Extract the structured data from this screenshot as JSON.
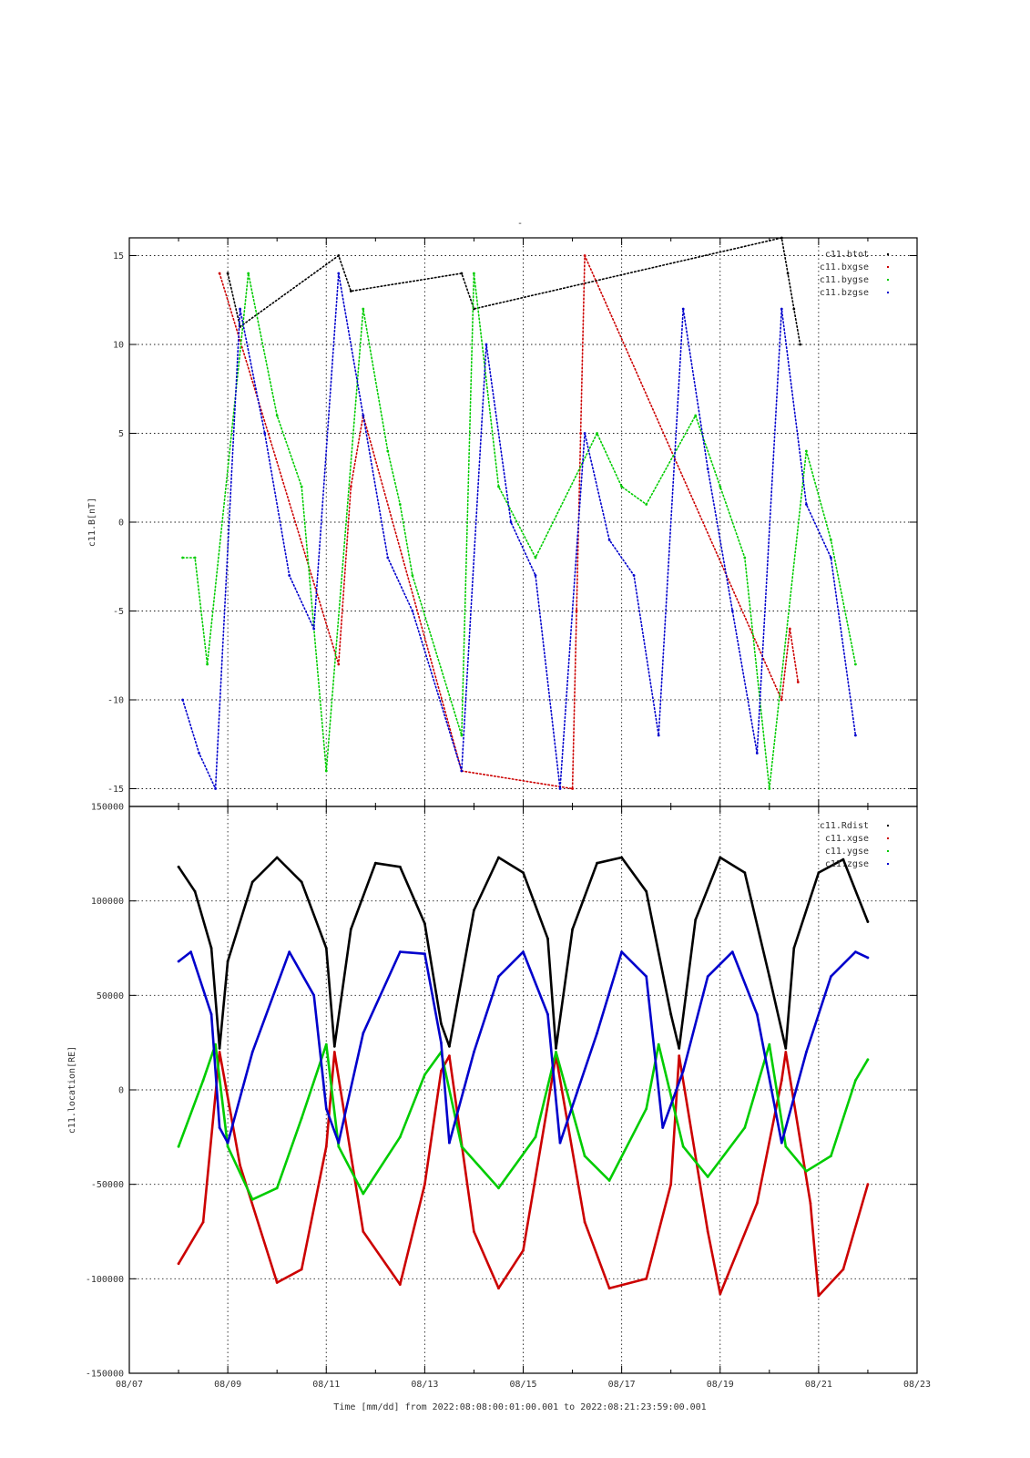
{
  "figure": {
    "top_title": "-",
    "xlabel": "Time [mm/dd]  from 2022:08:08:00:01:00.001  to  2022:08:21:23:59:00.001"
  },
  "chart_data": [
    {
      "type": "scatter",
      "ylabel": "c11.B[nT]",
      "xlim": [
        "08/07",
        "08/23"
      ],
      "ylim": [
        -16,
        16
      ],
      "y_ticks": [
        "15",
        "10",
        "5",
        "0",
        "-5",
        "-10",
        "-15"
      ],
      "y_tick_values": [
        15,
        10,
        5,
        0,
        -5,
        -10,
        -15
      ],
      "grid": true,
      "legend_position": "top-right",
      "series": [
        {
          "name": "c11.btot",
          "color": "#000000",
          "x": [
            "08/09 00:00",
            "08/09 06:00",
            "08/11 06:00",
            "08/11 12:00",
            "08/13 18:00",
            "08/14 00:00",
            "08/20 06:00",
            "08/20 09:00",
            "08/20 12:00",
            "08/20 15:00"
          ],
          "y": [
            14,
            11,
            15,
            13,
            14,
            12,
            16,
            14,
            12,
            10
          ]
        },
        {
          "name": "c11.bxgse",
          "color": "#cc0000",
          "x": [
            "08/08 20:00",
            "08/11 06:00",
            "08/11 12:00",
            "08/11 18:00",
            "08/13 18:00",
            "08/16 00:00",
            "08/16 02:00",
            "08/16 04:00",
            "08/16 06:00",
            "08/20 06:00",
            "08/20 10:00",
            "08/20 14:00"
          ],
          "y": [
            14,
            -8,
            2,
            6,
            -14,
            -15,
            -5,
            5,
            15,
            -10,
            -6,
            -9
          ]
        },
        {
          "name": "c11.bygse",
          "color": "#00cc00",
          "x": [
            "08/08 02:00",
            "08/08 08:00",
            "08/08 14:00",
            "08/09 10:00",
            "08/10 00:00",
            "08/10 12:00",
            "08/11 00:00",
            "08/11 18:00",
            "08/12 06:00",
            "08/12 12:00",
            "08/12 18:00",
            "08/13 18:00",
            "08/14 00:00",
            "08/14 12:00",
            "08/15 06:00",
            "08/16 12:00",
            "08/17 00:00",
            "08/17 12:00",
            "08/18 12:00",
            "08/19 00:00",
            "08/19 12:00",
            "08/20 00:00",
            "08/20 18:00",
            "08/21 06:00",
            "08/21 18:00"
          ],
          "y": [
            -2,
            -2,
            -8,
            14,
            6,
            2,
            -14,
            12,
            4,
            1,
            -3,
            -12,
            14,
            2,
            -2,
            5,
            2,
            1,
            6,
            2,
            -2,
            -15,
            4,
            -1,
            -8
          ]
        },
        {
          "name": "c11.bzgse",
          "color": "#0000cc",
          "x": [
            "08/08 02:00",
            "08/08 10:00",
            "08/08 18:00",
            "08/09 06:00",
            "08/09 18:00",
            "08/10 06:00",
            "08/10 18:00",
            "08/11 06:00",
            "08/11 18:00",
            "08/12 06:00",
            "08/12 18:00",
            "08/13 18:00",
            "08/14 06:00",
            "08/14 18:00",
            "08/15 06:00",
            "08/15 18:00",
            "08/16 06:00",
            "08/16 18:00",
            "08/17 06:00",
            "08/17 18:00",
            "08/18 06:00",
            "08/18 18:00",
            "08/19 06:00",
            "08/19 18:00",
            "08/20 06:00",
            "08/20 18:00",
            "08/21 06:00",
            "08/21 18:00"
          ],
          "y": [
            -10,
            -13,
            -15,
            12,
            5,
            -3,
            -6,
            14,
            6,
            -2,
            -5,
            -14,
            10,
            0,
            -3,
            -15,
            5,
            -1,
            -3,
            -12,
            12,
            3,
            -5,
            -13,
            12,
            1,
            -2,
            -12
          ]
        }
      ]
    },
    {
      "type": "scatter",
      "ylabel": "c11.location[RE]",
      "xlim": [
        "08/07",
        "08/23"
      ],
      "ylim": [
        -150000,
        150000
      ],
      "y_ticks": [
        "150000",
        "100000",
        "50000",
        "0",
        "-50000",
        "-100000",
        "-150000"
      ],
      "y_tick_values": [
        150000,
        100000,
        50000,
        0,
        -50000,
        -100000,
        -150000
      ],
      "x_ticks": [
        "08/07",
        "08/09",
        "08/11",
        "08/13",
        "08/15",
        "08/17",
        "08/19",
        "08/21",
        "08/23"
      ],
      "grid": true,
      "legend_position": "top-right",
      "series": [
        {
          "name": "c11.Rdist",
          "color": "#000000",
          "x": [
            "08/08 00:00",
            "08/08 08:00",
            "08/08 16:00",
            "08/08 20:00",
            "08/09 00:00",
            "08/09 12:00",
            "08/10 00:00",
            "08/10 12:00",
            "08/11 00:00",
            "08/11 04:00",
            "08/11 12:00",
            "08/12 00:00",
            "08/12 12:00",
            "08/13 00:00",
            "08/13 08:00",
            "08/13 12:00",
            "08/14 00:00",
            "08/14 12:00",
            "08/15 00:00",
            "08/15 12:00",
            "08/15 16:00",
            "08/16 00:00",
            "08/16 12:00",
            "08/17 00:00",
            "08/17 12:00",
            "08/18 00:00",
            "08/18 04:00",
            "08/18 12:00",
            "08/19 00:00",
            "08/19 12:00",
            "08/20 00:00",
            "08/20 08:00",
            "08/20 12:00",
            "08/21 00:00",
            "08/21 12:00",
            "08/22 00:00"
          ],
          "y": [
            118000,
            105000,
            75000,
            22000,
            68000,
            110000,
            123000,
            110000,
            75000,
            23000,
            85000,
            120000,
            118000,
            88000,
            35000,
            23000,
            95000,
            123000,
            115000,
            80000,
            22000,
            85000,
            120000,
            123000,
            105000,
            40000,
            22000,
            90000,
            123000,
            115000,
            60000,
            22000,
            75000,
            115000,
            122000,
            89000
          ]
        },
        {
          "name": "c11.xgse",
          "color": "#cc0000",
          "x": [
            "08/08 00:00",
            "08/08 12:00",
            "08/08 20:00",
            "08/09 06:00",
            "08/10 00:00",
            "08/10 12:00",
            "08/11 00:00",
            "08/11 04:00",
            "08/11 18:00",
            "08/12 12:00",
            "08/13 00:00",
            "08/13 08:00",
            "08/13 12:00",
            "08/14 00:00",
            "08/14 12:00",
            "08/15 00:00",
            "08/15 16:00",
            "08/16 06:00",
            "08/16 18:00",
            "08/17 12:00",
            "08/18 00:00",
            "08/18 04:00",
            "08/18 18:00",
            "08/19 00:00",
            "08/19 18:00",
            "08/20 06:00",
            "08/20 08:00",
            "08/20 20:00",
            "08/21 00:00",
            "08/21 12:00",
            "08/22 00:00"
          ],
          "y": [
            -92000,
            -70000,
            20000,
            -40000,
            -102000,
            -95000,
            -30000,
            20000,
            -75000,
            -103000,
            -50000,
            10000,
            18000,
            -75000,
            -105000,
            -85000,
            18000,
            -70000,
            -105000,
            -100000,
            -50000,
            18000,
            -75000,
            -108000,
            -60000,
            5000,
            20000,
            -60000,
            -109000,
            -95000,
            -50000
          ]
        },
        {
          "name": "c11.ygse",
          "color": "#00cc00",
          "x": [
            "08/08 00:00",
            "08/08 12:00",
            "08/08 18:00",
            "08/09 00:00",
            "08/09 12:00",
            "08/10 00:00",
            "08/10 12:00",
            "08/11 00:00",
            "08/11 06:00",
            "08/11 18:00",
            "08/12 12:00",
            "08/13 00:00",
            "08/13 08:00",
            "08/13 18:00",
            "08/14 12:00",
            "08/15 06:00",
            "08/15 16:00",
            "08/16 06:00",
            "08/16 18:00",
            "08/17 12:00",
            "08/17 18:00",
            "08/18 06:00",
            "08/18 18:00",
            "08/19 12:00",
            "08/20 00:00",
            "08/20 08:00",
            "08/20 18:00",
            "08/21 06:00",
            "08/21 18:00",
            "08/22 00:00"
          ],
          "y": [
            -30000,
            5000,
            24000,
            -30000,
            -58000,
            -52000,
            -15000,
            24000,
            -30000,
            -55000,
            -25000,
            8000,
            20000,
            -30000,
            -52000,
            -25000,
            20000,
            -35000,
            -48000,
            -10000,
            24000,
            -30000,
            -46000,
            -20000,
            24000,
            -30000,
            -43000,
            -35000,
            5000,
            16000
          ]
        },
        {
          "name": "c11.zgse",
          "color": "#0000cc",
          "x": [
            "08/08 00:00",
            "08/08 06:00",
            "08/08 16:00",
            "08/08 20:00",
            "08/09 00:00",
            "08/09 12:00",
            "08/10 06:00",
            "08/10 18:00",
            "08/11 00:00",
            "08/11 06:00",
            "08/11 18:00",
            "08/12 12:00",
            "08/13 00:00",
            "08/13 08:00",
            "08/13 12:00",
            "08/14 00:00",
            "08/14 12:00",
            "08/15 00:00",
            "08/15 12:00",
            "08/15 18:00",
            "08/16 12:00",
            "08/17 00:00",
            "08/17 12:00",
            "08/17 20:00",
            "08/18 06:00",
            "08/18 18:00",
            "08/19 06:00",
            "08/19 18:00",
            "08/20 06:00",
            "08/20 18:00",
            "08/21 06:00",
            "08/21 18:00",
            "08/22 00:00"
          ],
          "y": [
            68000,
            73000,
            40000,
            -20000,
            -28000,
            20000,
            73000,
            50000,
            -10000,
            -28000,
            30000,
            73000,
            72000,
            25000,
            -28000,
            20000,
            60000,
            73000,
            40000,
            -28000,
            30000,
            73000,
            60000,
            -20000,
            10000,
            60000,
            73000,
            40000,
            -28000,
            20000,
            60000,
            73000,
            70000
          ]
        }
      ]
    }
  ]
}
